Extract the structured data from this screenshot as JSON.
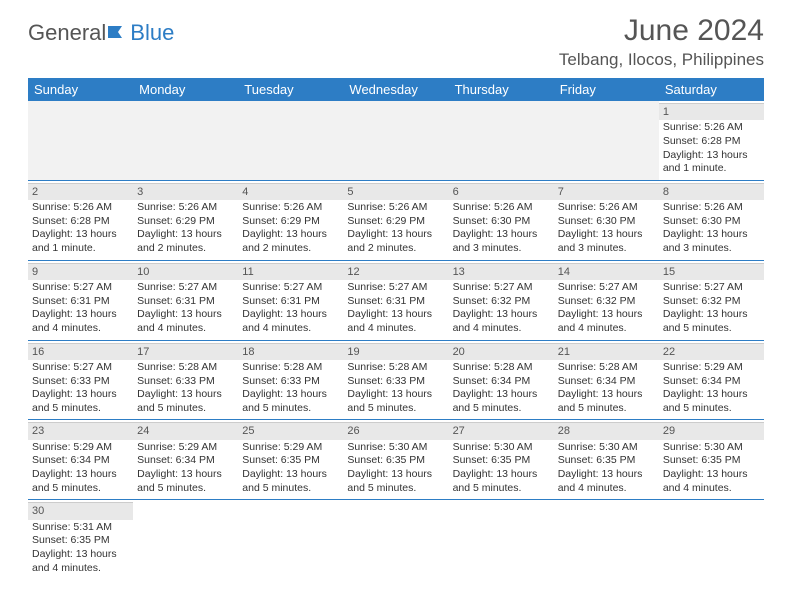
{
  "logo": {
    "part1": "General",
    "part2": "Blue"
  },
  "title": "June 2024",
  "location": "Telbang, Ilocos, Philippines",
  "colors": {
    "header_bg": "#2d7dc5",
    "header_text": "#ffffff",
    "daynum_bg": "#e8e8e8",
    "border": "#2d7dc5",
    "text": "#333333"
  },
  "weekdays": [
    "Sunday",
    "Monday",
    "Tuesday",
    "Wednesday",
    "Thursday",
    "Friday",
    "Saturday"
  ],
  "weeks": [
    [
      null,
      null,
      null,
      null,
      null,
      null,
      {
        "n": "1",
        "sr": "Sunrise: 5:26 AM",
        "ss": "Sunset: 6:28 PM",
        "dl": "Daylight: 13 hours and 1 minute."
      }
    ],
    [
      {
        "n": "2",
        "sr": "Sunrise: 5:26 AM",
        "ss": "Sunset: 6:28 PM",
        "dl": "Daylight: 13 hours and 1 minute."
      },
      {
        "n": "3",
        "sr": "Sunrise: 5:26 AM",
        "ss": "Sunset: 6:29 PM",
        "dl": "Daylight: 13 hours and 2 minutes."
      },
      {
        "n": "4",
        "sr": "Sunrise: 5:26 AM",
        "ss": "Sunset: 6:29 PM",
        "dl": "Daylight: 13 hours and 2 minutes."
      },
      {
        "n": "5",
        "sr": "Sunrise: 5:26 AM",
        "ss": "Sunset: 6:29 PM",
        "dl": "Daylight: 13 hours and 2 minutes."
      },
      {
        "n": "6",
        "sr": "Sunrise: 5:26 AM",
        "ss": "Sunset: 6:30 PM",
        "dl": "Daylight: 13 hours and 3 minutes."
      },
      {
        "n": "7",
        "sr": "Sunrise: 5:26 AM",
        "ss": "Sunset: 6:30 PM",
        "dl": "Daylight: 13 hours and 3 minutes."
      },
      {
        "n": "8",
        "sr": "Sunrise: 5:26 AM",
        "ss": "Sunset: 6:30 PM",
        "dl": "Daylight: 13 hours and 3 minutes."
      }
    ],
    [
      {
        "n": "9",
        "sr": "Sunrise: 5:27 AM",
        "ss": "Sunset: 6:31 PM",
        "dl": "Daylight: 13 hours and 4 minutes."
      },
      {
        "n": "10",
        "sr": "Sunrise: 5:27 AM",
        "ss": "Sunset: 6:31 PM",
        "dl": "Daylight: 13 hours and 4 minutes."
      },
      {
        "n": "11",
        "sr": "Sunrise: 5:27 AM",
        "ss": "Sunset: 6:31 PM",
        "dl": "Daylight: 13 hours and 4 minutes."
      },
      {
        "n": "12",
        "sr": "Sunrise: 5:27 AM",
        "ss": "Sunset: 6:31 PM",
        "dl": "Daylight: 13 hours and 4 minutes."
      },
      {
        "n": "13",
        "sr": "Sunrise: 5:27 AM",
        "ss": "Sunset: 6:32 PM",
        "dl": "Daylight: 13 hours and 4 minutes."
      },
      {
        "n": "14",
        "sr": "Sunrise: 5:27 AM",
        "ss": "Sunset: 6:32 PM",
        "dl": "Daylight: 13 hours and 4 minutes."
      },
      {
        "n": "15",
        "sr": "Sunrise: 5:27 AM",
        "ss": "Sunset: 6:32 PM",
        "dl": "Daylight: 13 hours and 5 minutes."
      }
    ],
    [
      {
        "n": "16",
        "sr": "Sunrise: 5:27 AM",
        "ss": "Sunset: 6:33 PM",
        "dl": "Daylight: 13 hours and 5 minutes."
      },
      {
        "n": "17",
        "sr": "Sunrise: 5:28 AM",
        "ss": "Sunset: 6:33 PM",
        "dl": "Daylight: 13 hours and 5 minutes."
      },
      {
        "n": "18",
        "sr": "Sunrise: 5:28 AM",
        "ss": "Sunset: 6:33 PM",
        "dl": "Daylight: 13 hours and 5 minutes."
      },
      {
        "n": "19",
        "sr": "Sunrise: 5:28 AM",
        "ss": "Sunset: 6:33 PM",
        "dl": "Daylight: 13 hours and 5 minutes."
      },
      {
        "n": "20",
        "sr": "Sunrise: 5:28 AM",
        "ss": "Sunset: 6:34 PM",
        "dl": "Daylight: 13 hours and 5 minutes."
      },
      {
        "n": "21",
        "sr": "Sunrise: 5:28 AM",
        "ss": "Sunset: 6:34 PM",
        "dl": "Daylight: 13 hours and 5 minutes."
      },
      {
        "n": "22",
        "sr": "Sunrise: 5:29 AM",
        "ss": "Sunset: 6:34 PM",
        "dl": "Daylight: 13 hours and 5 minutes."
      }
    ],
    [
      {
        "n": "23",
        "sr": "Sunrise: 5:29 AM",
        "ss": "Sunset: 6:34 PM",
        "dl": "Daylight: 13 hours and 5 minutes."
      },
      {
        "n": "24",
        "sr": "Sunrise: 5:29 AM",
        "ss": "Sunset: 6:34 PM",
        "dl": "Daylight: 13 hours and 5 minutes."
      },
      {
        "n": "25",
        "sr": "Sunrise: 5:29 AM",
        "ss": "Sunset: 6:35 PM",
        "dl": "Daylight: 13 hours and 5 minutes."
      },
      {
        "n": "26",
        "sr": "Sunrise: 5:30 AM",
        "ss": "Sunset: 6:35 PM",
        "dl": "Daylight: 13 hours and 5 minutes."
      },
      {
        "n": "27",
        "sr": "Sunrise: 5:30 AM",
        "ss": "Sunset: 6:35 PM",
        "dl": "Daylight: 13 hours and 5 minutes."
      },
      {
        "n": "28",
        "sr": "Sunrise: 5:30 AM",
        "ss": "Sunset: 6:35 PM",
        "dl": "Daylight: 13 hours and 4 minutes."
      },
      {
        "n": "29",
        "sr": "Sunrise: 5:30 AM",
        "ss": "Sunset: 6:35 PM",
        "dl": "Daylight: 13 hours and 4 minutes."
      }
    ],
    [
      {
        "n": "30",
        "sr": "Sunrise: 5:31 AM",
        "ss": "Sunset: 6:35 PM",
        "dl": "Daylight: 13 hours and 4 minutes."
      },
      null,
      null,
      null,
      null,
      null,
      null
    ]
  ]
}
